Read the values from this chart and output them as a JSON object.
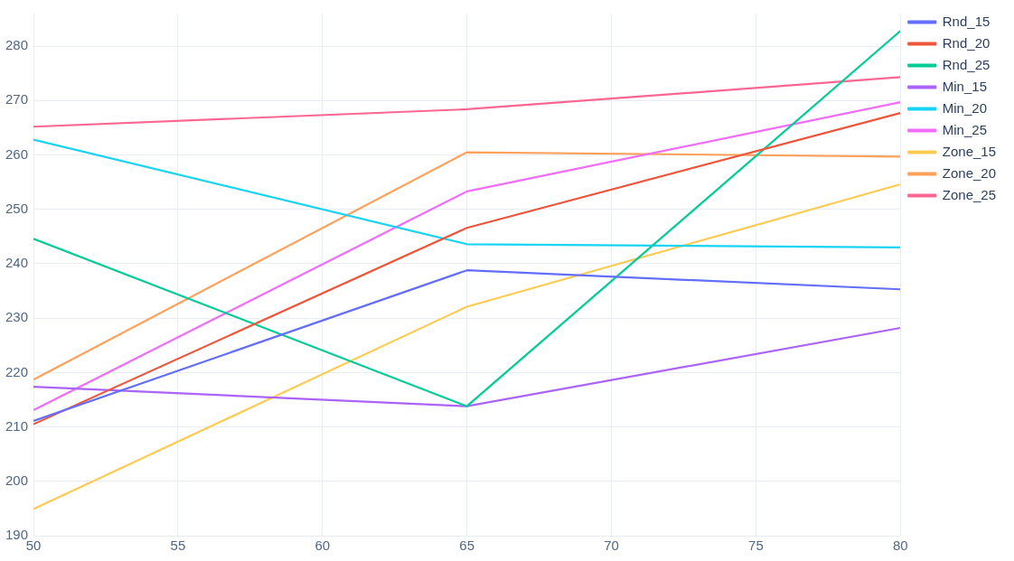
{
  "chart_data": {
    "type": "line",
    "x": [
      50,
      65,
      80
    ],
    "xlim": [
      50,
      80
    ],
    "xticks": [
      50,
      55,
      60,
      65,
      70,
      75,
      80
    ],
    "ylim": [
      190,
      286
    ],
    "yticks": [
      190,
      200,
      210,
      220,
      230,
      240,
      250,
      260,
      270,
      280
    ],
    "grid": true,
    "legend": "top right",
    "marker": "none",
    "line_style": "solid",
    "series": [
      {
        "name": "Rnd_15",
        "color": "#636efa",
        "values": [
          211.1,
          238.8,
          235.3
        ]
      },
      {
        "name": "Rnd_20",
        "color": "#ef553b",
        "values": [
          210.5,
          246.6,
          267.7
        ]
      },
      {
        "name": "Rnd_25",
        "color": "#00cc96",
        "values": [
          244.6,
          213.8,
          282.8
        ]
      },
      {
        "name": "Min_15",
        "color": "#ab63fa",
        "values": [
          217.4,
          213.8,
          228.2
        ]
      },
      {
        "name": "Min_20",
        "color": "#19d3f3",
        "values": [
          262.8,
          243.6,
          243.0
        ]
      },
      {
        "name": "Min_25",
        "color": "#f06cf9",
        "values": [
          213.1,
          253.3,
          269.7
        ]
      },
      {
        "name": "Zone_15",
        "color": "#fecb52",
        "values": [
          194.9,
          232.1,
          254.6
        ]
      },
      {
        "name": "Zone_20",
        "color": "#ffa15a",
        "values": [
          218.7,
          260.5,
          259.7
        ]
      },
      {
        "name": "Zone_25",
        "color": "#ff6692",
        "values": [
          265.2,
          268.4,
          274.3
        ]
      }
    ]
  }
}
